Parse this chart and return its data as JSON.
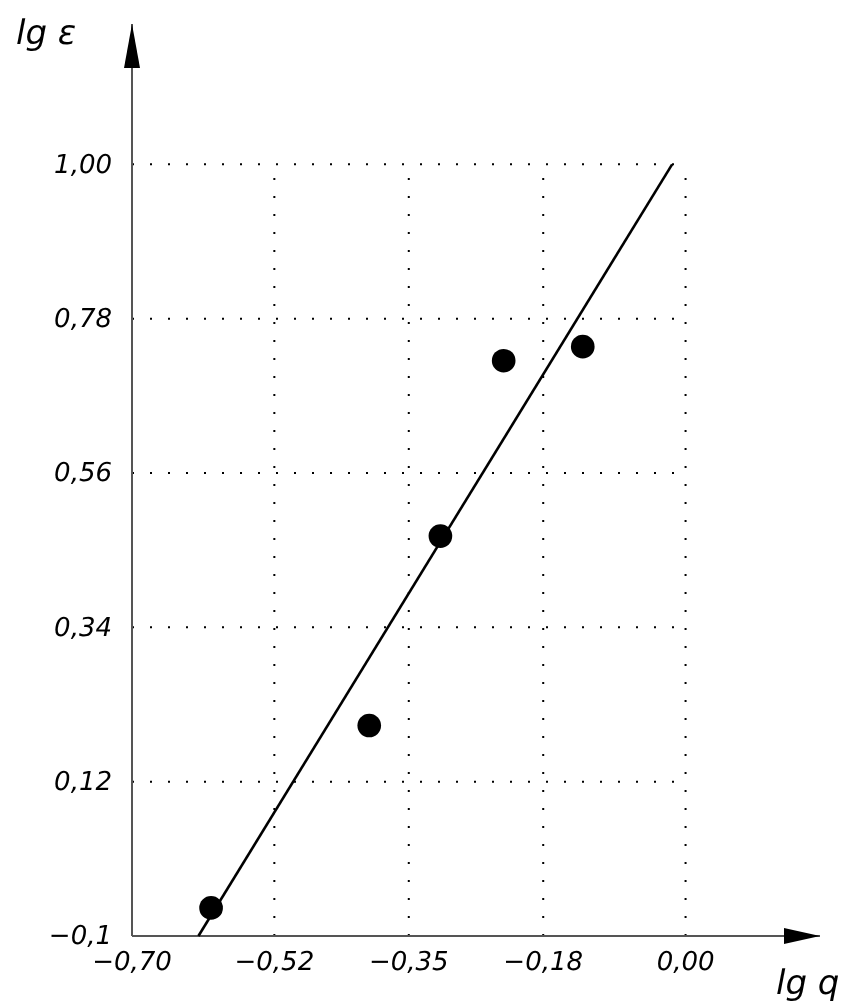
{
  "chart_data": {
    "type": "scatter",
    "xlabel": "lg q",
    "ylabel": "lg ε",
    "x": [
      -0.6,
      -0.4,
      -0.31,
      -0.23,
      -0.13
    ],
    "series": [
      {
        "marker": "circle",
        "color": "#000000",
        "values": [
          -0.06,
          0.2,
          0.47,
          0.72,
          0.74
        ]
      },
      {
        "type": "line",
        "color": "#000000",
        "x": [
          -0.616,
          -0.017
        ],
        "values": [
          -0.1,
          1.0
        ]
      }
    ],
    "xlim": [
      -0.7,
      0.17
    ],
    "ylim": [
      -0.1,
      1.2
    ],
    "xticks": [
      {
        "value": -0.7,
        "label": "−0,70"
      },
      {
        "value": -0.52,
        "label": "−0,52"
      },
      {
        "value": -0.35,
        "label": "−0,35"
      },
      {
        "value": -0.18,
        "label": "−0,18"
      },
      {
        "value": 0.0,
        "label": "0,00"
      }
    ],
    "yticks": [
      {
        "value": -0.1,
        "label": "−0,1"
      },
      {
        "value": 0.12,
        "label": "0,12"
      },
      {
        "value": 0.34,
        "label": "0,34"
      },
      {
        "value": 0.56,
        "label": "0,56"
      },
      {
        "value": 0.78,
        "label": "0,78"
      },
      {
        "value": 1.0,
        "label": "1,00"
      }
    ],
    "grid": true,
    "line_style": "solid"
  }
}
